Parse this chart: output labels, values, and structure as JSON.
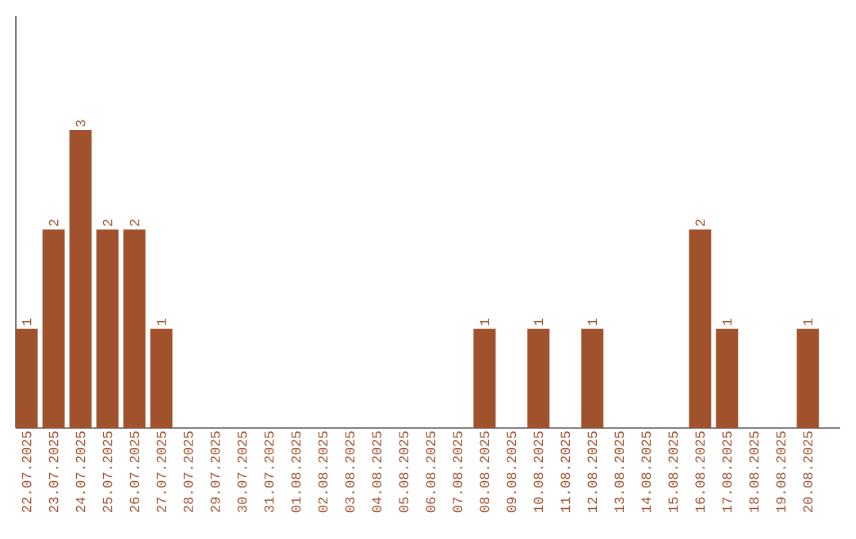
{
  "chart_data": {
    "type": "bar",
    "categories": [
      "22.07.2025",
      "23.07.2025",
      "24.07.2025",
      "25.07.2025",
      "26.07.2025",
      "27.07.2025",
      "28.07.2025",
      "29.07.2025",
      "30.07.2025",
      "31.07.2025",
      "01.08.2025",
      "02.08.2025",
      "03.08.2025",
      "04.08.2025",
      "05.08.2025",
      "06.08.2025",
      "07.08.2025",
      "08.08.2025",
      "09.08.2025",
      "10.08.2025",
      "11.08.2025",
      "12.08.2025",
      "13.08.2025",
      "14.08.2025",
      "15.08.2025",
      "16.08.2025",
      "17.08.2025",
      "18.08.2025",
      "19.08.2025",
      "20.08.2025"
    ],
    "values": [
      1,
      2,
      3,
      2,
      2,
      1,
      0,
      0,
      0,
      0,
      0,
      0,
      0,
      0,
      0,
      0,
      0,
      1,
      0,
      1,
      0,
      1,
      0,
      0,
      0,
      2,
      1,
      0,
      0,
      1
    ],
    "value_labels": [
      "1",
      "2",
      "3",
      "2",
      "2",
      "1",
      null,
      null,
      null,
      null,
      null,
      null,
      null,
      null,
      null,
      null,
      null,
      "1",
      null,
      "1",
      null,
      "1",
      null,
      null,
      null,
      "2",
      "1",
      null,
      null,
      "1"
    ],
    "color": "#a0522d",
    "ylim": [
      0,
      4.15
    ],
    "tick_labels": "x"
  }
}
